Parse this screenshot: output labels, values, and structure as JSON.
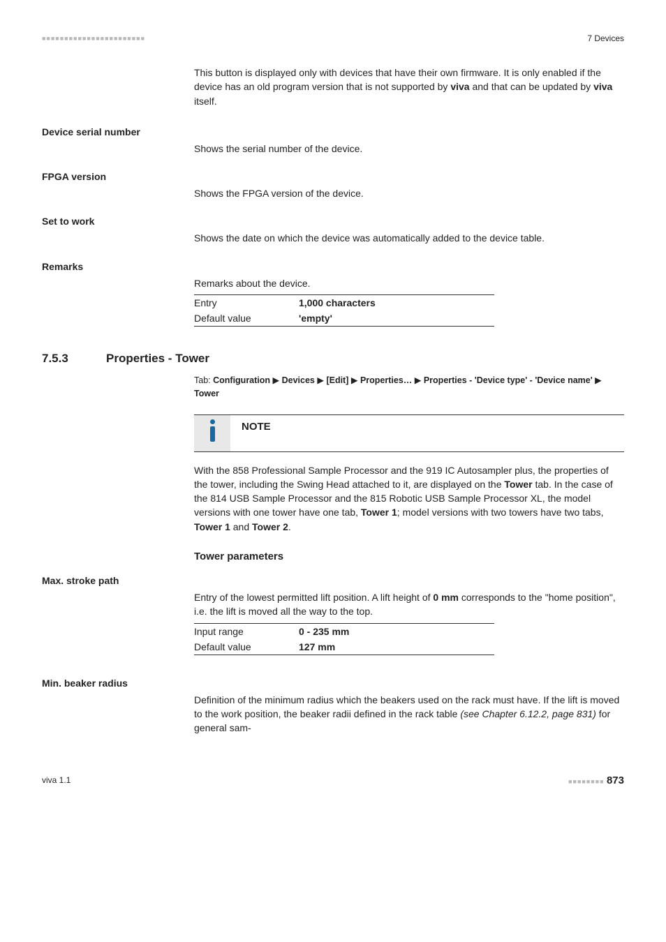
{
  "header": {
    "dash": "■■■■■■■■■■■■■■■■■■■■■■■",
    "section": "7 Devices"
  },
  "intro_para": "This button is displayed only with devices that have their own firmware. It is only enabled if the device has an old program version that is not supported by <b>viva</b> and that can be updated by <b>viva</b> itself.",
  "fields": {
    "device_serial": {
      "label": "Device serial number",
      "desc": "Shows the serial number of the device."
    },
    "fpga": {
      "label": "FPGA version",
      "desc": "Shows the FPGA version of the device."
    },
    "set_to_work": {
      "label": "Set to work",
      "desc": "Shows the date on which the device was automatically added to the device table."
    },
    "remarks": {
      "label": "Remarks",
      "desc": "Remarks about the device.",
      "entry_key": "Entry",
      "entry_val": "1,000 characters",
      "default_key": "Default value",
      "default_val": "'empty'"
    }
  },
  "section": {
    "num": "7.5.3",
    "title": "Properties - Tower",
    "tab_path": "Tab: <b>Configuration</b> ▶ <b>Devices</b> ▶ <b>[Edit]</b> ▶ <b>Properties…</b> ▶ <b>Properties - 'Device type' - 'Device name'</b> ▶ <b>Tower</b>"
  },
  "note": {
    "label": "NOTE",
    "body": "With the 858 Professional Sample Processor and the 919 IC Autosampler plus, the properties of the tower, including the Swing Head attached to it, are displayed on the <b>Tower</b> tab. In the case of the 814 USB Sample Processor and the 815 Robotic USB Sample Processor XL, the model versions with one tower have one tab, <b>Tower 1</b>; model versions with two towers have two tabs, <b>Tower 1</b> and <b>Tower 2</b>."
  },
  "tower": {
    "heading": "Tower parameters",
    "max_stroke": {
      "label": "Max. stroke path",
      "desc": "Entry of the lowest permitted lift position. A lift height of <b>0 mm</b> corresponds to the \"home position\", i.e. the lift is moved all the way to the top.",
      "range_key": "Input range",
      "range_val": "0 - 235 mm",
      "default_key": "Default value",
      "default_val": "127 mm"
    },
    "min_beaker": {
      "label": "Min. beaker radius",
      "desc": "Definition of the minimum radius which the beakers used on the rack must have. If the lift is moved to the work position, the beaker radii defined in the rack table <i>(see Chapter 6.12.2, page 831)</i> for general sam-"
    }
  },
  "footer": {
    "left": "viva 1.1",
    "dash": "■■■■■■■■",
    "page": "873"
  }
}
